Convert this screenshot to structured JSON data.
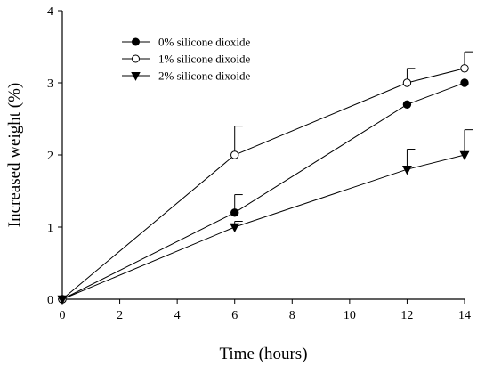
{
  "chart_data": {
    "type": "line",
    "xlabel": "Time (hours)",
    "ylabel": "Increased weight (%)",
    "xlim": [
      0,
      14
    ],
    "ylim": [
      0,
      4
    ],
    "xticks": [
      0,
      2,
      4,
      6,
      8,
      10,
      12,
      14
    ],
    "yticks": [
      0,
      1,
      2,
      3,
      4
    ],
    "grid": false,
    "legend_position": "top-left",
    "series": [
      {
        "name": "0% silicone dioxide",
        "marker": "filled-circle",
        "x": [
          0,
          6,
          12,
          14
        ],
        "y": [
          0,
          1.2,
          2.7,
          3.0
        ],
        "err_upper": [
          0,
          0.25,
          0.0,
          0.0
        ]
      },
      {
        "name": "1% silicone dixoide",
        "marker": "open-circle",
        "x": [
          0,
          6,
          12,
          14
        ],
        "y": [
          0,
          2.0,
          3.0,
          3.2
        ],
        "err_upper": [
          0,
          0.4,
          0.2,
          0.23
        ]
      },
      {
        "name": "2% silicone dixoide",
        "marker": "filled-triangle-down",
        "x": [
          0,
          6,
          12,
          14
        ],
        "y": [
          0,
          1.0,
          1.8,
          2.0
        ],
        "err_upper": [
          0,
          0.08,
          0.28,
          0.35
        ]
      }
    ]
  }
}
